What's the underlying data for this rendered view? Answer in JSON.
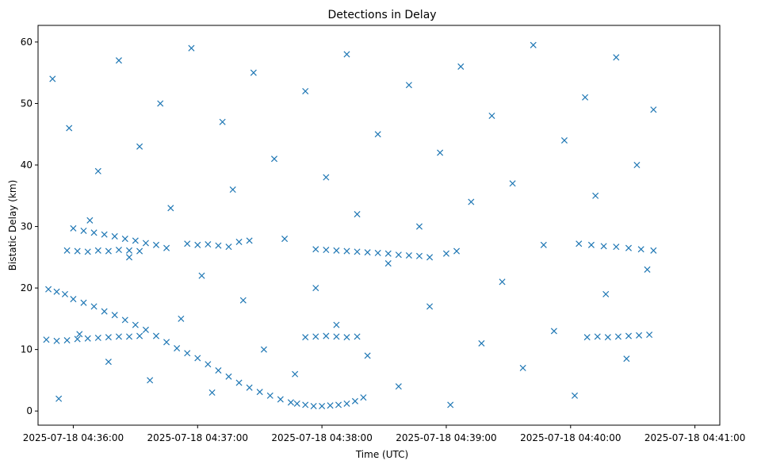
{
  "chart_data": {
    "type": "scatter",
    "title": "Detections in Delay",
    "xlabel": "Time (UTC)",
    "ylabel": "Bistatic Delay (km)",
    "marker": "x",
    "color": "#1f77b4",
    "grid": false,
    "legend": "none",
    "xlim": [
      "2025-07-18 04:35:43",
      "2025-07-18 04:41:12"
    ],
    "ylim": [
      -2.3,
      62.7
    ],
    "xticks": [
      "2025-07-18 04:36:00",
      "2025-07-18 04:37:00",
      "2025-07-18 04:38:00",
      "2025-07-18 04:39:00",
      "2025-07-18 04:40:00",
      "2025-07-18 04:41:00"
    ],
    "xtick_labels": [
      "2025-07-18 04:36:00",
      "2025-07-18 04:37:00",
      "2025-07-18 04:38:00",
      "2025-07-18 04:39:00",
      "2025-07-18 04:40:00",
      "2025-07-18 04:41:00"
    ],
    "yticks": [
      0,
      10,
      20,
      30,
      40,
      50,
      60
    ],
    "ytick_labels": [
      "0",
      "10",
      "20",
      "30",
      "40",
      "50",
      "60"
    ],
    "series": [
      {
        "x": [
          "2025-07-18 04:35:48",
          "2025-07-18 04:35:52",
          "2025-07-18 04:35:56",
          "2025-07-18 04:36:00",
          "2025-07-18 04:36:05",
          "2025-07-18 04:36:10",
          "2025-07-18 04:36:15",
          "2025-07-18 04:36:20",
          "2025-07-18 04:36:25",
          "2025-07-18 04:36:30",
          "2025-07-18 04:36:35",
          "2025-07-18 04:36:40",
          "2025-07-18 04:36:45",
          "2025-07-18 04:36:50",
          "2025-07-18 04:36:55",
          "2025-07-18 04:37:00",
          "2025-07-18 04:37:05",
          "2025-07-18 04:37:10",
          "2025-07-18 04:37:15",
          "2025-07-18 04:37:20",
          "2025-07-18 04:37:25",
          "2025-07-18 04:37:30",
          "2025-07-18 04:37:35",
          "2025-07-18 04:37:40",
          "2025-07-18 04:37:45",
          "2025-07-18 04:37:48",
          "2025-07-18 04:37:52",
          "2025-07-18 04:37:56",
          "2025-07-18 04:38:00",
          "2025-07-18 04:38:04",
          "2025-07-18 04:38:08",
          "2025-07-18 04:38:12",
          "2025-07-18 04:38:16",
          "2025-07-18 04:38:20"
        ],
        "y": [
          19.8,
          19.4,
          19.0,
          18.2,
          17.6,
          17.0,
          16.2,
          15.6,
          14.8,
          14.0,
          13.2,
          12.2,
          11.2,
          10.2,
          9.4,
          8.6,
          7.6,
          6.6,
          5.6,
          4.6,
          3.8,
          3.1,
          2.5,
          1.9,
          1.4,
          1.2,
          1.0,
          0.8,
          0.8,
          0.9,
          1.0,
          1.2,
          1.6,
          2.2
        ]
      },
      {
        "x": [
          "2025-07-18 04:36:00",
          "2025-07-18 04:36:05",
          "2025-07-18 04:36:10",
          "2025-07-18 04:36:15",
          "2025-07-18 04:36:20",
          "2025-07-18 04:36:25",
          "2025-07-18 04:36:30",
          "2025-07-18 04:36:35",
          "2025-07-18 04:36:40",
          "2025-07-18 04:36:45"
        ],
        "y": [
          29.7,
          29.3,
          29.0,
          28.7,
          28.4,
          28.0,
          27.7,
          27.3,
          27.0,
          26.5
        ]
      },
      {
        "x": [
          "2025-07-18 04:35:47",
          "2025-07-18 04:35:52",
          "2025-07-18 04:35:57",
          "2025-07-18 04:36:02",
          "2025-07-18 04:36:07",
          "2025-07-18 04:36:12",
          "2025-07-18 04:36:17",
          "2025-07-18 04:36:22",
          "2025-07-18 04:36:27",
          "2025-07-18 04:36:32",
          "2025-07-18 04:37:52",
          "2025-07-18 04:37:57",
          "2025-07-18 04:38:02",
          "2025-07-18 04:38:07",
          "2025-07-18 04:38:12",
          "2025-07-18 04:38:17",
          "2025-07-18 04:40:08",
          "2025-07-18 04:40:13",
          "2025-07-18 04:40:18",
          "2025-07-18 04:40:23",
          "2025-07-18 04:40:28",
          "2025-07-18 04:40:33",
          "2025-07-18 04:40:38"
        ],
        "y": [
          11.6,
          11.4,
          11.5,
          11.7,
          11.8,
          11.9,
          12.0,
          12.1,
          12.1,
          12.2,
          12.0,
          12.1,
          12.2,
          12.1,
          12.0,
          12.1,
          12.0,
          12.1,
          12.0,
          12.1,
          12.2,
          12.3,
          12.4
        ]
      },
      {
        "x": [
          "2025-07-18 04:35:57",
          "2025-07-18 04:36:02",
          "2025-07-18 04:36:07",
          "2025-07-18 04:36:12",
          "2025-07-18 04:36:17",
          "2025-07-18 04:36:22",
          "2025-07-18 04:36:27",
          "2025-07-18 04:36:32",
          "2025-07-18 04:37:57",
          "2025-07-18 04:38:02",
          "2025-07-18 04:38:07",
          "2025-07-18 04:38:12",
          "2025-07-18 04:38:17",
          "2025-07-18 04:38:22",
          "2025-07-18 04:38:27",
          "2025-07-18 04:38:32",
          "2025-07-18 04:38:37",
          "2025-07-18 04:38:42",
          "2025-07-18 04:38:47",
          "2025-07-18 04:38:52",
          "2025-07-18 04:39:00",
          "2025-07-18 04:39:05",
          "2025-07-18 04:40:04",
          "2025-07-18 04:40:10",
          "2025-07-18 04:40:16",
          "2025-07-18 04:40:22",
          "2025-07-18 04:40:28",
          "2025-07-18 04:40:34",
          "2025-07-18 04:40:40"
        ],
        "y": [
          26.1,
          26.0,
          25.9,
          26.1,
          26.0,
          26.2,
          26.1,
          26.0,
          26.3,
          26.2,
          26.1,
          26.0,
          25.9,
          25.8,
          25.7,
          25.6,
          25.4,
          25.3,
          25.2,
          25.0,
          25.6,
          26.0,
          27.2,
          27.0,
          26.8,
          26.7,
          26.5,
          26.3,
          26.1
        ]
      },
      {
        "x": [
          "2025-07-18 04:36:55",
          "2025-07-18 04:37:00",
          "2025-07-18 04:37:05",
          "2025-07-18 04:37:10",
          "2025-07-18 04:37:15",
          "2025-07-18 04:37:20",
          "2025-07-18 04:37:25"
        ],
        "y": [
          27.2,
          27.0,
          27.1,
          26.9,
          26.7,
          27.5,
          27.7
        ]
      },
      {
        "x": [
          "2025-07-18 04:35:50",
          "2025-07-18 04:35:53",
          "2025-07-18 04:35:58",
          "2025-07-18 04:36:03",
          "2025-07-18 04:36:08",
          "2025-07-18 04:36:12",
          "2025-07-18 04:36:17",
          "2025-07-18 04:36:22",
          "2025-07-18 04:36:27",
          "2025-07-18 04:36:32",
          "2025-07-18 04:36:37",
          "2025-07-18 04:36:42",
          "2025-07-18 04:36:47",
          "2025-07-18 04:36:52",
          "2025-07-18 04:36:57",
          "2025-07-18 04:37:02",
          "2025-07-18 04:37:07",
          "2025-07-18 04:37:12",
          "2025-07-18 04:37:17",
          "2025-07-18 04:37:22",
          "2025-07-18 04:37:27",
          "2025-07-18 04:37:32",
          "2025-07-18 04:37:37",
          "2025-07-18 04:37:42",
          "2025-07-18 04:37:47",
          "2025-07-18 04:37:52",
          "2025-07-18 04:37:57",
          "2025-07-18 04:38:02",
          "2025-07-18 04:38:07",
          "2025-07-18 04:38:12",
          "2025-07-18 04:38:17",
          "2025-07-18 04:38:22",
          "2025-07-18 04:38:27",
          "2025-07-18 04:38:32",
          "2025-07-18 04:38:37",
          "2025-07-18 04:38:42",
          "2025-07-18 04:38:47",
          "2025-07-18 04:38:52",
          "2025-07-18 04:38:57",
          "2025-07-18 04:39:02",
          "2025-07-18 04:39:07",
          "2025-07-18 04:39:12",
          "2025-07-18 04:39:17",
          "2025-07-18 04:39:22",
          "2025-07-18 04:39:27",
          "2025-07-18 04:39:32",
          "2025-07-18 04:39:37",
          "2025-07-18 04:39:42",
          "2025-07-18 04:39:47",
          "2025-07-18 04:39:52",
          "2025-07-18 04:39:57",
          "2025-07-18 04:40:02",
          "2025-07-18 04:40:07",
          "2025-07-18 04:40:12",
          "2025-07-18 04:40:17",
          "2025-07-18 04:40:22",
          "2025-07-18 04:40:27",
          "2025-07-18 04:40:32",
          "2025-07-18 04:40:37",
          "2025-07-18 04:40:40"
        ],
        "y": [
          54.0,
          2.0,
          46.0,
          12.5,
          31.0,
          39.0,
          8.0,
          57.0,
          25.0,
          43.0,
          5.0,
          50.0,
          33.0,
          15.0,
          59.0,
          22.0,
          3.0,
          47.0,
          36.0,
          18.0,
          55.0,
          10.0,
          41.0,
          28.0,
          6.0,
          52.0,
          20.0,
          38.0,
          14.0,
          58.0,
          32.0,
          9.0,
          45.0,
          24.0,
          4.0,
          53.0,
          30.0,
          17.0,
          42.0,
          1.0,
          56.0,
          34.0,
          11.0,
          48.0,
          21.0,
          37.0,
          7.0,
          59.5,
          27.0,
          13.0,
          44.0,
          2.5,
          51.0,
          35.0,
          19.0,
          57.5,
          8.5,
          40.0,
          23.0,
          49.0
        ]
      }
    ]
  }
}
